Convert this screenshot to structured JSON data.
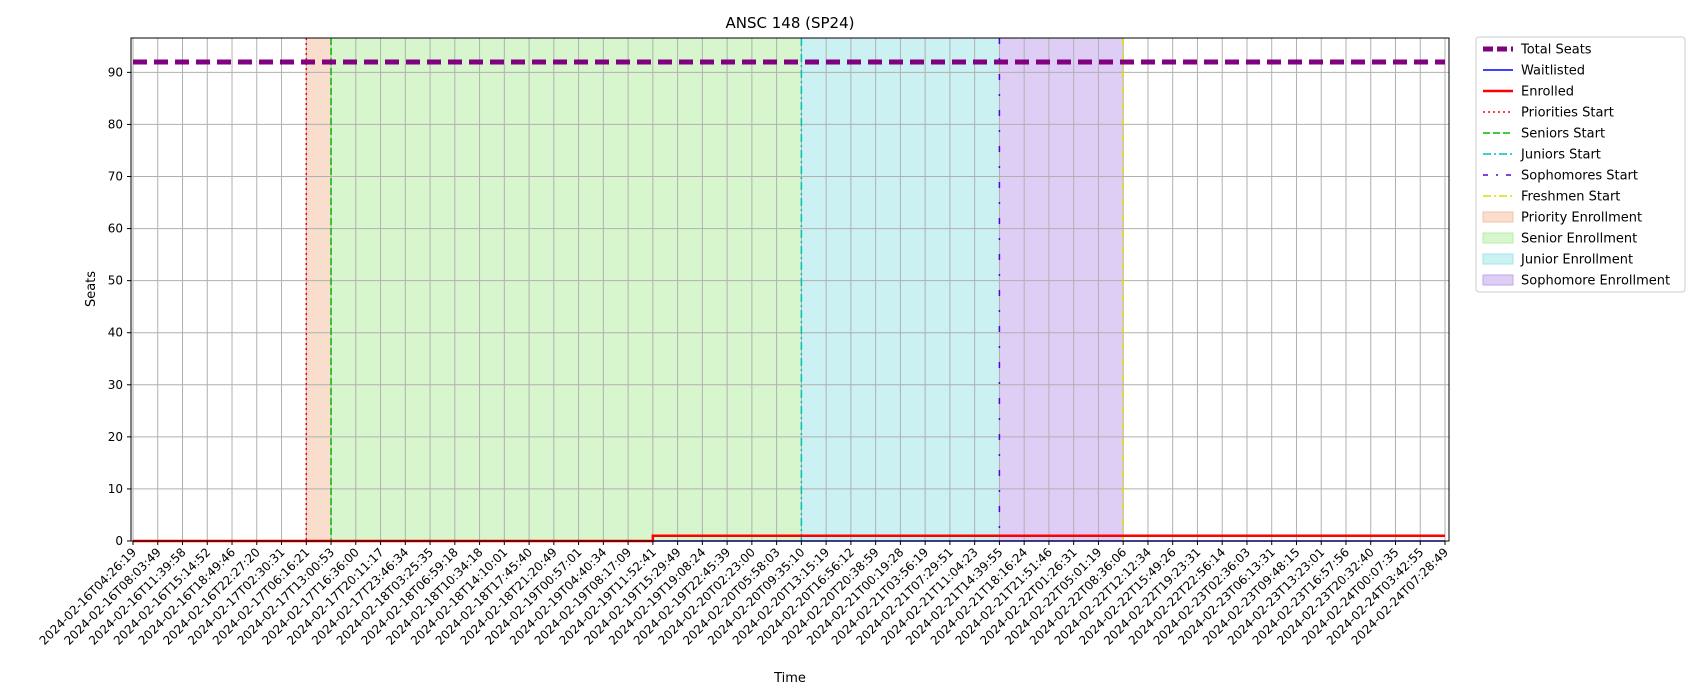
{
  "chart_data": {
    "type": "line",
    "title": "ANSC 148 (SP24)",
    "xlabel": "Time",
    "ylabel": "Seats",
    "ylim": [
      0,
      96.6
    ],
    "yticks": [
      0,
      10,
      20,
      30,
      40,
      50,
      60,
      70,
      80,
      90
    ],
    "grid": true,
    "legend_position": "outside-right",
    "x_ticks": [
      "2024-02-16T04:26:19",
      "2024-02-16T08:03:49",
      "2024-02-16T11:39:58",
      "2024-02-16T15:14:52",
      "2024-02-16T18:49:46",
      "2024-02-16T22:27:20",
      "2024-02-17T02:30:31",
      "2024-02-17T06:16:21",
      "2024-02-17T13:00:53",
      "2024-02-17T16:36:00",
      "2024-02-17T20:11:17",
      "2024-02-17T23:46:34",
      "2024-02-18T03:25:35",
      "2024-02-18T06:59:18",
      "2024-02-18T10:34:18",
      "2024-02-18T14:10:01",
      "2024-02-18T17:45:40",
      "2024-02-18T21:20:49",
      "2024-02-19T00:57:01",
      "2024-02-19T04:40:34",
      "2024-02-19T08:17:09",
      "2024-02-19T11:52:41",
      "2024-02-19T15:29:49",
      "2024-02-19T19:08:24",
      "2024-02-19T22:45:39",
      "2024-02-20T02:23:00",
      "2024-02-20T05:58:03",
      "2024-02-20T09:35:10",
      "2024-02-20T13:15:19",
      "2024-02-20T16:56:12",
      "2024-02-20T20:38:59",
      "2024-02-21T00:19:28",
      "2024-02-21T03:56:19",
      "2024-02-21T07:29:51",
      "2024-02-21T11:04:23",
      "2024-02-21T14:39:55",
      "2024-02-21T18:16:24",
      "2024-02-21T21:51:46",
      "2024-02-22T01:26:31",
      "2024-02-22T05:01:19",
      "2024-02-22T08:36:06",
      "2024-02-22T12:12:34",
      "2024-02-22T15:49:26",
      "2024-02-22T19:23:31",
      "2024-02-22T22:56:14",
      "2024-02-23T02:36:03",
      "2024-02-23T06:13:31",
      "2024-02-23T09:48:15",
      "2024-02-23T13:23:01",
      "2024-02-23T16:57:56",
      "2024-02-23T20:32:40",
      "2024-02-24T00:07:35",
      "2024-02-24T03:42:55",
      "2024-02-24T07:28:49"
    ],
    "series": [
      {
        "name": "Total Seats",
        "color": "#800080",
        "style": "dashed-thick",
        "x": [
          "2024-02-16T04:26:19",
          "2024-02-24T07:28:49"
        ],
        "values": [
          92,
          92
        ]
      },
      {
        "name": "Waitlisted",
        "color": "#0000ff",
        "style": "solid",
        "x": [
          "2024-02-16T04:26:19",
          "2024-02-24T07:28:49"
        ],
        "values": [
          0,
          0
        ]
      },
      {
        "name": "Enrolled",
        "color": "#ff0000",
        "style": "solid-thick",
        "x": [
          "2024-02-16T04:26:19",
          "2024-02-19T11:52:41",
          "2024-02-19T11:52:41",
          "2024-02-24T07:28:49"
        ],
        "values": [
          0,
          0,
          1,
          1
        ]
      }
    ],
    "markers": [
      {
        "name": "Priorities Start",
        "color": "#ff0000",
        "style": "dotted",
        "x": "2024-02-17T06:16:21"
      },
      {
        "name": "Seniors Start",
        "color": "#00bb00",
        "style": "dashed",
        "x": "2024-02-17T13:00:53"
      },
      {
        "name": "Juniors Start",
        "color": "#00bfbf",
        "style": "dashdot",
        "x": "2024-02-20T09:35:10"
      },
      {
        "name": "Sophomores Start",
        "color": "#5500dd",
        "style": "dashdot-sparse",
        "x": "2024-02-21T14:39:55"
      },
      {
        "name": "Freshmen Start",
        "color": "#dddd00",
        "style": "dashdot",
        "x": "2024-02-22T08:36:06"
      }
    ],
    "regions": [
      {
        "name": "Priority Enrollment",
        "color": "#f4c2a4",
        "from": "2024-02-17T06:16:21",
        "to": "2024-02-17T13:00:53"
      },
      {
        "name": "Senior Enrollment",
        "color": "#b6eea6",
        "from": "2024-02-17T13:00:53",
        "to": "2024-02-20T09:35:10"
      },
      {
        "name": "Junior Enrollment",
        "color": "#a0e6ea",
        "from": "2024-02-20T09:35:10",
        "to": "2024-02-21T14:39:55"
      },
      {
        "name": "Sophomore Enrollment",
        "color": "#c2a6ec",
        "from": "2024-02-21T14:39:55",
        "to": "2024-02-22T08:36:06"
      }
    ]
  }
}
